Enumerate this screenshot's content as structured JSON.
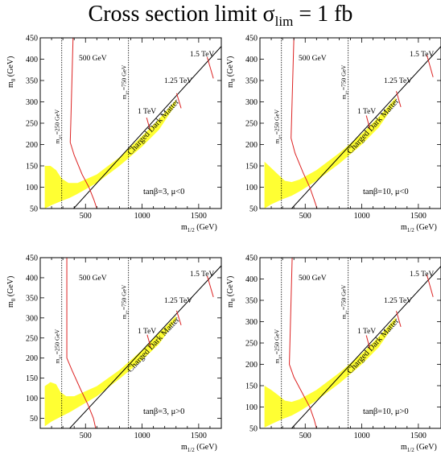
{
  "title": {
    "prefix": "Cross section limit σ",
    "subscript": "lim",
    "suffix": " = 1 fb"
  },
  "colors": {
    "band": "#ffff33",
    "contour": "#dd2222",
    "boundary": "#000000",
    "vline": "#000000"
  },
  "chart_data": [
    {
      "type": "line",
      "panel": "top-left",
      "xlabel_main": "m",
      "xlabel_sub": "1/2",
      "xlabel_unit": " (GeV)",
      "ylabel_main": "m",
      "ylabel_sub": "0",
      "ylabel_unit": " (GeV)",
      "xlim": [
        100,
        1700
      ],
      "ylim": [
        50,
        450
      ],
      "xticks": [
        500,
        1000,
        1500
      ],
      "yticks": [
        50,
        100,
        150,
        200,
        250,
        300,
        350,
        400,
        450
      ],
      "tick_labels_y": [
        "50",
        "100",
        "150",
        "200",
        "250",
        "300",
        "350",
        "400",
        "450"
      ],
      "tick_labels_x": [
        "500",
        "1000",
        "1500"
      ],
      "params": "tanβ=3, μ<0",
      "vlines": [
        {
          "x": 290,
          "label": "m",
          "sub": "χ+",
          "val": "=250 GeV"
        },
        {
          "x": 880,
          "label": "m",
          "sub": "χ+",
          "val": "=750 GeV"
        }
      ],
      "boundary_label": "Charged Dark Matter",
      "boundary": [
        [
          395,
          50
        ],
        [
          1700,
          430
        ]
      ],
      "band_upper": [
        [
          140,
          150
        ],
        [
          190,
          150
        ],
        [
          240,
          140
        ],
        [
          290,
          120
        ],
        [
          350,
          110
        ],
        [
          430,
          110
        ],
        [
          600,
          130
        ],
        [
          800,
          170
        ],
        [
          1000,
          220
        ],
        [
          1150,
          260
        ],
        [
          1300,
          305
        ]
      ],
      "band_lower": [
        [
          140,
          50
        ],
        [
          200,
          58
        ],
        [
          290,
          68
        ],
        [
          360,
          75
        ],
        [
          420,
          83
        ],
        [
          600,
          110
        ],
        [
          800,
          150
        ],
        [
          1000,
          195
        ],
        [
          1150,
          235
        ],
        [
          1300,
          295
        ]
      ],
      "contours": [
        {
          "label": "500 GeV",
          "points": [
            [
              390,
              450
            ],
            [
              370,
              250
            ],
            [
              365,
              205
            ],
            [
              400,
              175
            ],
            [
              470,
              130
            ],
            [
              530,
              100
            ],
            [
              575,
              70
            ],
            [
              600,
              50
            ]
          ]
        },
        {
          "label": "1 TeV",
          "points": [
            [
              1040,
              263
            ],
            [
              1070,
              235
            ]
          ]
        },
        {
          "label": "1.25 TeV",
          "points": [
            [
              1305,
              320
            ],
            [
              1345,
              285
            ]
          ]
        },
        {
          "label": "1.5 TeV",
          "points": [
            [
              1575,
              405
            ],
            [
              1630,
              355
            ]
          ]
        }
      ]
    },
    {
      "type": "line",
      "panel": "top-right",
      "xlabel_main": "m",
      "xlabel_sub": "1/2",
      "xlabel_unit": " (GeV)",
      "ylabel_main": "m",
      "ylabel_sub": "0",
      "ylabel_unit": " (GeV)",
      "xlim": [
        100,
        1700
      ],
      "ylim": [
        50,
        450
      ],
      "xticks": [
        500,
        1000,
        1500
      ],
      "yticks": [
        50,
        100,
        150,
        200,
        250,
        300,
        350,
        400,
        450
      ],
      "tick_labels_y": [
        "50",
        "100",
        "150",
        "200",
        "250",
        "300",
        "350",
        "400",
        "450"
      ],
      "tick_labels_x": [
        "500",
        "1000",
        "1500"
      ],
      "params": "tanβ=10, μ<0",
      "vlines": [
        {
          "x": 290,
          "label": "m",
          "sub": "χ+",
          "val": "=250 GeV"
        },
        {
          "x": 880,
          "label": "m",
          "sub": "χ+",
          "val": "=750 GeV"
        }
      ],
      "boundary_label": "Charged Dark Matter",
      "boundary": [
        [
          380,
          50
        ],
        [
          1700,
          430
        ]
      ],
      "band_upper": [
        [
          140,
          160
        ],
        [
          200,
          145
        ],
        [
          260,
          130
        ],
        [
          320,
          115
        ],
        [
          380,
          112
        ],
        [
          450,
          118
        ],
        [
          600,
          140
        ],
        [
          800,
          180
        ],
        [
          1000,
          225
        ],
        [
          1150,
          265
        ],
        [
          1300,
          310
        ]
      ],
      "band_lower": [
        [
          140,
          50
        ],
        [
          200,
          60
        ],
        [
          300,
          72
        ],
        [
          380,
          80
        ],
        [
          450,
          90
        ],
        [
          600,
          115
        ],
        [
          800,
          155
        ],
        [
          1000,
          200
        ],
        [
          1150,
          240
        ],
        [
          1300,
          298
        ]
      ],
      "contours": [
        {
          "label": "500 GeV",
          "points": [
            [
              400,
              450
            ],
            [
              380,
              260
            ],
            [
              375,
              215
            ],
            [
              410,
              180
            ],
            [
              480,
              135
            ],
            [
              540,
              100
            ],
            [
              580,
              70
            ],
            [
              605,
              50
            ]
          ]
        },
        {
          "label": "1 TeV",
          "points": [
            [
              1040,
              268
            ],
            [
              1070,
              238
            ]
          ]
        },
        {
          "label": "1.25 TeV",
          "points": [
            [
              1305,
              325
            ],
            [
              1345,
              288
            ]
          ]
        },
        {
          "label": "1.5 TeV",
          "points": [
            [
              1575,
              410
            ],
            [
              1630,
              358
            ]
          ]
        }
      ]
    },
    {
      "type": "line",
      "panel": "bottom-left",
      "xlabel_main": "m",
      "xlabel_sub": "1/2",
      "xlabel_unit": " (GeV)",
      "ylabel_main": "m",
      "ylabel_sub": "0",
      "ylabel_unit": " (GeV)",
      "xlim": [
        100,
        1700
      ],
      "ylim": [
        25,
        450
      ],
      "xticks": [
        500,
        1000,
        1500
      ],
      "yticks": [
        50,
        100,
        150,
        200,
        250,
        300,
        350,
        400,
        450
      ],
      "tick_labels_y": [
        "50",
        "100",
        "150",
        "200",
        "250",
        "300",
        "350",
        "400",
        "450"
      ],
      "tick_labels_x": [
        "500",
        "1000",
        "1500"
      ],
      "params": "tanβ=3, μ>0",
      "vlines": [
        {
          "x": 290,
          "label": "m",
          "sub": "χ+",
          "val": "=250 GeV"
        },
        {
          "x": 880,
          "label": "m",
          "sub": "χ+",
          "val": "=750 GeV"
        }
      ],
      "boundary_label": "Charged Dark Matter",
      "boundary": [
        [
          360,
          25
        ],
        [
          1700,
          430
        ]
      ],
      "band_upper": [
        [
          140,
          130
        ],
        [
          190,
          140
        ],
        [
          240,
          135
        ],
        [
          280,
          115
        ],
        [
          330,
          105
        ],
        [
          400,
          105
        ],
        [
          600,
          130
        ],
        [
          800,
          170
        ],
        [
          1000,
          220
        ],
        [
          1150,
          262
        ],
        [
          1300,
          305
        ]
      ],
      "band_lower": [
        [
          140,
          30
        ],
        [
          200,
          42
        ],
        [
          290,
          55
        ],
        [
          360,
          65
        ],
        [
          420,
          75
        ],
        [
          600,
          105
        ],
        [
          800,
          148
        ],
        [
          1000,
          195
        ],
        [
          1150,
          235
        ],
        [
          1300,
          295
        ]
      ],
      "contours": [
        {
          "label": "500 GeV",
          "points": [
            [
              335,
              450
            ],
            [
              335,
              200
            ],
            [
              380,
              170
            ],
            [
              460,
              120
            ],
            [
              520,
              85
            ],
            [
              570,
              50
            ],
            [
              590,
              25
            ]
          ]
        },
        {
          "label": "1 TeV",
          "points": [
            [
              1045,
              258
            ],
            [
              1075,
              228
            ]
          ]
        },
        {
          "label": "1.25 TeV",
          "points": [
            [
              1305,
              318
            ],
            [
              1345,
              282
            ]
          ]
        },
        {
          "label": "1.5 TeV",
          "points": [
            [
              1575,
              405
            ],
            [
              1630,
              352
            ]
          ]
        }
      ]
    },
    {
      "type": "line",
      "panel": "bottom-right",
      "xlabel_main": "m",
      "xlabel_sub": "1/2",
      "xlabel_unit": " (GeV)",
      "ylabel_main": "m",
      "ylabel_sub": "0",
      "ylabel_unit": " (GeV)",
      "xlim": [
        100,
        1700
      ],
      "ylim": [
        50,
        450
      ],
      "xticks": [
        500,
        1000,
        1500
      ],
      "yticks": [
        50,
        100,
        150,
        200,
        250,
        300,
        350,
        400,
        450
      ],
      "tick_labels_y": [
        "50",
        "100",
        "150",
        "200",
        "250",
        "300",
        "350",
        "400",
        "450"
      ],
      "tick_labels_x": [
        "500",
        "1000",
        "1500"
      ],
      "params": "tanβ=10, μ>0",
      "vlines": [
        {
          "x": 290,
          "label": "m",
          "sub": "χ+",
          "val": "=250 GeV"
        },
        {
          "x": 880,
          "label": "m",
          "sub": "χ+",
          "val": "=750 GeV"
        }
      ],
      "boundary_label": "Charged Dark Matter",
      "boundary": [
        [
          380,
          50
        ],
        [
          1700,
          430
        ]
      ],
      "band_upper": [
        [
          140,
          150
        ],
        [
          200,
          140
        ],
        [
          260,
          128
        ],
        [
          320,
          115
        ],
        [
          380,
          112
        ],
        [
          450,
          118
        ],
        [
          600,
          140
        ],
        [
          800,
          180
        ],
        [
          1000,
          225
        ],
        [
          1150,
          265
        ],
        [
          1300,
          310
        ]
      ],
      "band_lower": [
        [
          140,
          52
        ],
        [
          200,
          60
        ],
        [
          300,
          72
        ],
        [
          380,
          80
        ],
        [
          450,
          90
        ],
        [
          600,
          115
        ],
        [
          800,
          155
        ],
        [
          1000,
          200
        ],
        [
          1150,
          240
        ],
        [
          1300,
          298
        ]
      ],
      "contours": [
        {
          "label": "500 GeV",
          "points": [
            [
              385,
              450
            ],
            [
              365,
              250
            ],
            [
              360,
              200
            ],
            [
              400,
              170
            ],
            [
              480,
              130
            ],
            [
              540,
              100
            ],
            [
              580,
              70
            ],
            [
              600,
              50
            ]
          ]
        },
        {
          "label": "1 TeV",
          "points": [
            [
              1040,
              268
            ],
            [
              1070,
              238
            ]
          ]
        },
        {
          "label": "1.25 TeV",
          "points": [
            [
              1305,
              325
            ],
            [
              1345,
              288
            ]
          ]
        },
        {
          "label": "1.5 TeV",
          "points": [
            [
              1575,
              410
            ],
            [
              1630,
              358
            ]
          ]
        }
      ]
    }
  ]
}
